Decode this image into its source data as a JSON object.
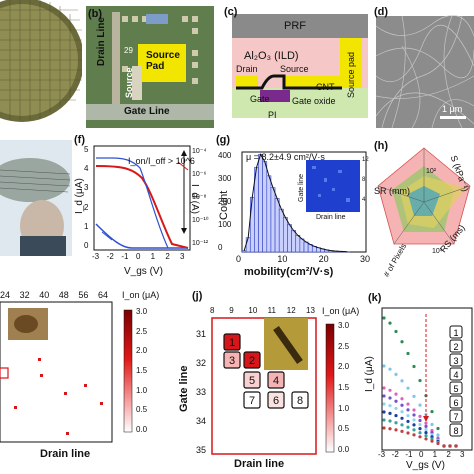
{
  "panel_b": {
    "label": "(b)",
    "drain_line": "Drain Line",
    "source": "Source",
    "source_pad": "Source\nPad",
    "gate_line": "Gate Line",
    "pad_number": "29"
  },
  "panel_c": {
    "label": "(c)",
    "prf": "PRF",
    "ild": "Al₂O₃ (ILD)",
    "drain": "Drain",
    "source": "Source",
    "cnt": "CNT",
    "gate": "Gate",
    "gate_oxide": "Gate oxide",
    "pi": "PI",
    "source_pad": "Source pad"
  },
  "panel_d": {
    "label": "(d)",
    "scale_bar": "1 μm"
  },
  "panel_f": {
    "label": "(f)",
    "annotation": "I_on/I_off > 10^6",
    "ylabel_left": "I_d (μA)",
    "ylabel_right": "I_d (A)",
    "xlabel": "V_gs (V)",
    "x_ticks": [
      "-3",
      "-2",
      "-1",
      "0",
      "1",
      "2",
      "3"
    ],
    "y_ticks_left": [
      "0",
      "1",
      "2",
      "3",
      "4",
      "5"
    ],
    "y_ticks_right": [
      "10⁻⁴",
      "10⁻⁶",
      "10⁻⁸",
      "10⁻¹⁰",
      "10⁻¹²"
    ]
  },
  "panel_g": {
    "label": "(g)",
    "annotation": "μ = 8.2±4.9 cm²/V·s",
    "ylabel": "Count",
    "xlabel": "mobility(cm²/V·s)",
    "x_ticks": [
      "0",
      "10",
      "20",
      "30"
    ],
    "y_ticks": [
      "0",
      "100",
      "200",
      "300",
      "400"
    ],
    "inset_ylabel": "Gate line",
    "inset_xlabel": "Drain line",
    "inset_colorbar": [
      "12",
      "8",
      "4"
    ],
    "chart_data": {
      "type": "bar",
      "x": [
        1,
        2,
        3,
        4,
        5,
        6,
        7,
        8,
        9,
        10,
        11,
        12,
        13,
        14,
        15,
        16,
        17,
        18,
        19,
        20,
        21,
        22,
        23,
        24,
        25,
        26
      ],
      "values": [
        5,
        60,
        230,
        355,
        410,
        380,
        320,
        270,
        225,
        180,
        145,
        115,
        90,
        70,
        55,
        42,
        32,
        24,
        18,
        13,
        9,
        6,
        4,
        3,
        2,
        1
      ],
      "xlabel": "mobility(cm²/V·s)",
      "ylabel": "Count",
      "xlim": [
        0,
        30
      ],
      "ylim": [
        0,
        420
      ]
    }
  },
  "panel_h": {
    "label": "(h)",
    "axes": [
      "S (kPa⁻¹)",
      "RS (ms)",
      "# of Pixels",
      "SR (mm)"
    ],
    "tick_top": "10²",
    "tick_bottom": "10⁴"
  },
  "panel_i": {
    "x_ticks": [
      "24",
      "32",
      "40",
      "48",
      "56",
      "64"
    ],
    "xlabel": "Drain line",
    "colorbar_title": "I_on (μA)",
    "colorbar_ticks": [
      "3.0",
      "2.5",
      "2.0",
      "1.5",
      "1.0",
      "0.5",
      "0.0"
    ]
  },
  "panel_j": {
    "label": "(j)",
    "x_ticks": [
      "8",
      "9",
      "10",
      "11",
      "12",
      "13"
    ],
    "y_ticks": [
      "31",
      "32",
      "33",
      "34",
      "35"
    ],
    "ylabel": "Gate line",
    "xlabel": "Drain line",
    "colorbar_title": "I_on (μA)",
    "colorbar_ticks": [
      "3.0",
      "2.5",
      "2.0",
      "1.5",
      "1.0",
      "0.5",
      "0.0"
    ],
    "cells": [
      "1",
      "2",
      "3",
      "4",
      "5",
      "6",
      "7",
      "8"
    ]
  },
  "panel_k": {
    "label": "(k)",
    "ylabel": "I_d (μA)",
    "xlabel": "V_gs (V)",
    "x_ticks": [
      "-3",
      "-2",
      "-1",
      "0",
      "1",
      "2",
      "3"
    ],
    "legend": [
      "1",
      "2",
      "3",
      "4",
      "5",
      "6",
      "7",
      "8"
    ],
    "colors": [
      "#2e8b57",
      "#7cc6e8",
      "#e060c0",
      "#7a4fcf",
      "#8fd4ea",
      "#1a3fa0",
      "#3aa0a0",
      "#c04040"
    ]
  },
  "colors": {
    "accent_red": "#d8161a",
    "prf_gray": "#8a8a8a",
    "pad_yellow": "#f2e600"
  }
}
